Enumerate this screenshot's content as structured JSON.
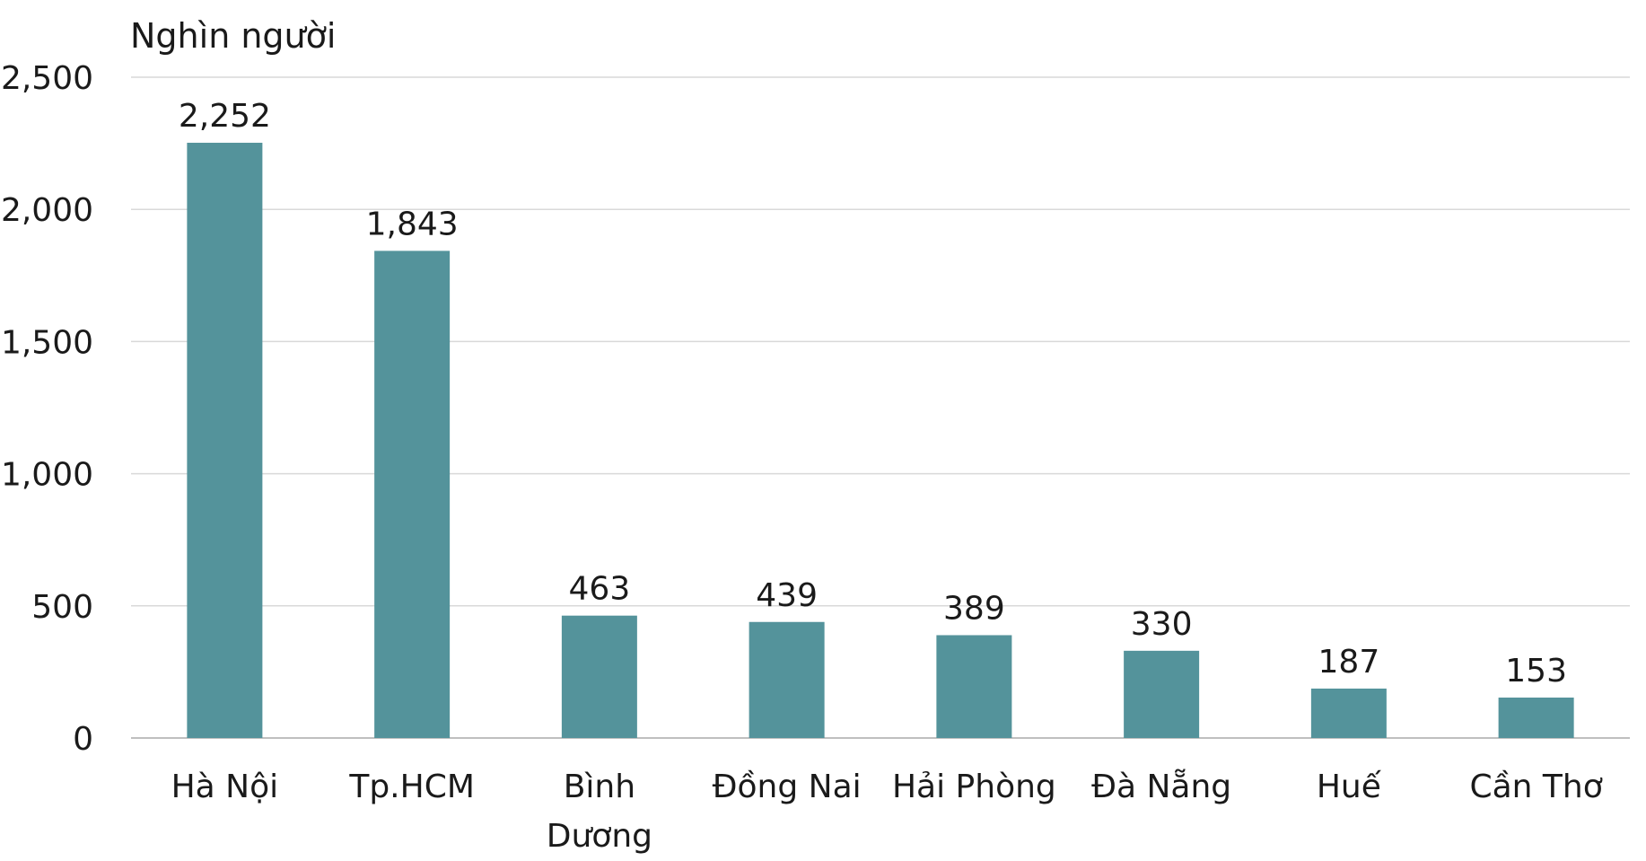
{
  "chart_data": {
    "type": "bar",
    "title": "",
    "unit_label": "Nghìn người",
    "xlabel": "",
    "ylabel": "",
    "categories": [
      "Hà Nội",
      "Tp.HCM",
      "Bình Dương",
      "Đồng Nai",
      "Hải Phòng",
      "Đà Nẵng",
      "Huế",
      "Cần Thơ"
    ],
    "category_lines": [
      [
        "Hà Nội"
      ],
      [
        "Tp.HCM"
      ],
      [
        "Bình",
        "Dương"
      ],
      [
        "Đồng Nai"
      ],
      [
        "Hải Phòng"
      ],
      [
        "Đà Nẵng"
      ],
      [
        "Huế"
      ],
      [
        "Cần Thơ"
      ]
    ],
    "values": [
      2252,
      1843,
      463,
      439,
      389,
      330,
      187,
      153
    ],
    "data_labels": [
      "2,252",
      "1,843",
      "463",
      "439",
      "389",
      "330",
      "187",
      "153"
    ],
    "ylim": [
      0,
      2500
    ],
    "yticks": [
      0,
      500,
      1000,
      1500,
      2000,
      2500
    ],
    "ytick_labels": [
      "0",
      "500",
      "1,000",
      "1,500",
      "2,000",
      "2,500"
    ],
    "grid": true,
    "legend": "none",
    "colors": {
      "bar": "#54939b",
      "grid": "#d9d9d9",
      "axis": "#bfbfbf",
      "text": "#1a1a1a"
    }
  }
}
